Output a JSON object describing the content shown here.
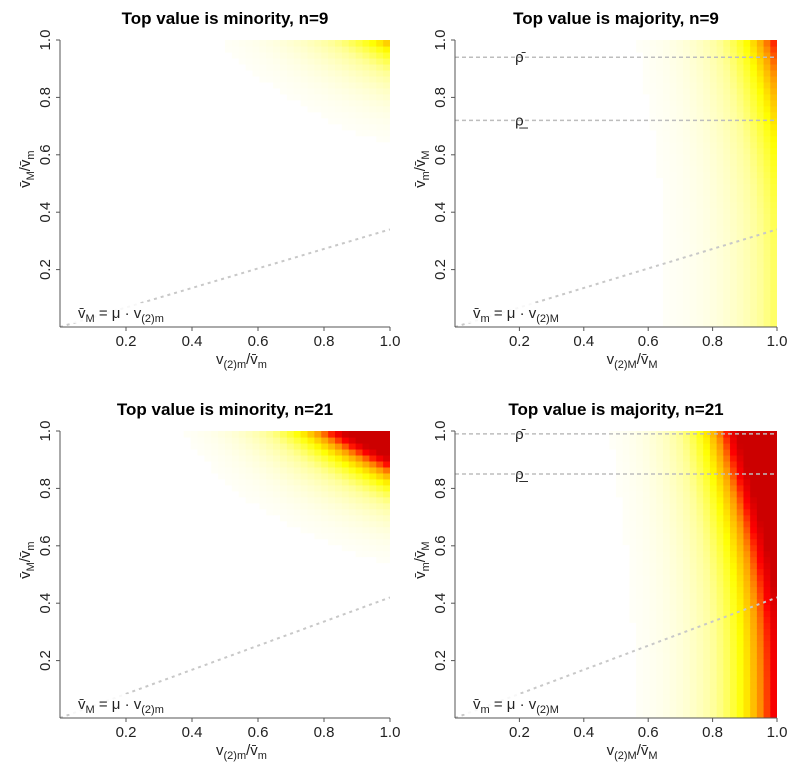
{
  "chart_data": [
    {
      "type": "heatmap",
      "title": "Top value is minority, n=9",
      "xlabel": "v(2)m/v̄m",
      "ylabel": "v̄M/v̄m",
      "xlim": [
        0,
        1
      ],
      "ylim": [
        0,
        1
      ],
      "xticks": [
        "0.2",
        "0.4",
        "0.6",
        "0.8",
        "1.0"
      ],
      "yticks": [
        "0.2",
        "0.4",
        "0.6",
        "0.8",
        "1.0"
      ],
      "reference_line": {
        "label": "v̄M = μ · v(2)m",
        "slope": 0.34,
        "color": "#c8c8c8",
        "style": "dotted"
      },
      "horizontal_lines": [],
      "colors": [
        "#ffffff",
        "#ffff99",
        "#ffff00",
        "#ff9900",
        "#ff0000",
        "#cc0000"
      ],
      "max_intensity": 0.22
    },
    {
      "type": "heatmap",
      "title": "Top value is majority, n=9",
      "xlabel": "v(2)M/v̄M",
      "ylabel": "v̄m/v̄M",
      "xlim": [
        0,
        1
      ],
      "ylim": [
        0,
        1
      ],
      "xticks": [
        "0.2",
        "0.4",
        "0.6",
        "0.8",
        "1.0"
      ],
      "yticks": [
        "0.2",
        "0.4",
        "0.6",
        "0.8",
        "1.0"
      ],
      "reference_line": {
        "label": "v̄m = μ · v(2)M",
        "slope": 0.34,
        "color": "#c8c8c8",
        "style": "dotted"
      },
      "horizontal_lines": [
        {
          "y": 0.94,
          "label": "ρ̄"
        },
        {
          "y": 0.72,
          "label": "ρ̲"
        }
      ],
      "colors": [
        "#ffffff",
        "#ffff99",
        "#ffff00",
        "#ff9900",
        "#ff0000",
        "#cc0000"
      ],
      "max_intensity": 0.32
    },
    {
      "type": "heatmap",
      "title": "Top value is minority, n=21",
      "xlabel": "v(2)m/v̄m",
      "ylabel": "v̄M/v̄m",
      "xlim": [
        0,
        1
      ],
      "ylim": [
        0,
        1
      ],
      "xticks": [
        "0.2",
        "0.4",
        "0.6",
        "0.8",
        "1.0"
      ],
      "yticks": [
        "0.2",
        "0.4",
        "0.6",
        "0.8",
        "1.0"
      ],
      "reference_line": {
        "label": "v̄M = μ · v(2)m",
        "slope": 0.42,
        "color": "#c8c8c8",
        "style": "dotted"
      },
      "horizontal_lines": [],
      "colors": [
        "#ffffff",
        "#ffff99",
        "#ffff00",
        "#ff9900",
        "#ff0000",
        "#cc0000"
      ],
      "max_intensity": 0.85
    },
    {
      "type": "heatmap",
      "title": "Top value is majority, n=21",
      "xlabel": "v(2)M/v̄M",
      "ylabel": "v̄m/v̄M",
      "xlim": [
        0,
        1
      ],
      "ylim": [
        0,
        1
      ],
      "xticks": [
        "0.2",
        "0.4",
        "0.6",
        "0.8",
        "1.0"
      ],
      "yticks": [
        "0.2",
        "0.4",
        "0.6",
        "0.8",
        "1.0"
      ],
      "reference_line": {
        "label": "v̄m = μ · v(2)M",
        "slope": 0.42,
        "color": "#c8c8c8",
        "style": "dotted"
      },
      "horizontal_lines": [
        {
          "y": 0.99,
          "label": "ρ̄"
        },
        {
          "y": 0.85,
          "label": "ρ̲"
        }
      ],
      "colors": [
        "#ffffff",
        "#ffff99",
        "#ffff00",
        "#ff9900",
        "#ff0000",
        "#cc0000"
      ],
      "max_intensity": 1.0
    }
  ]
}
